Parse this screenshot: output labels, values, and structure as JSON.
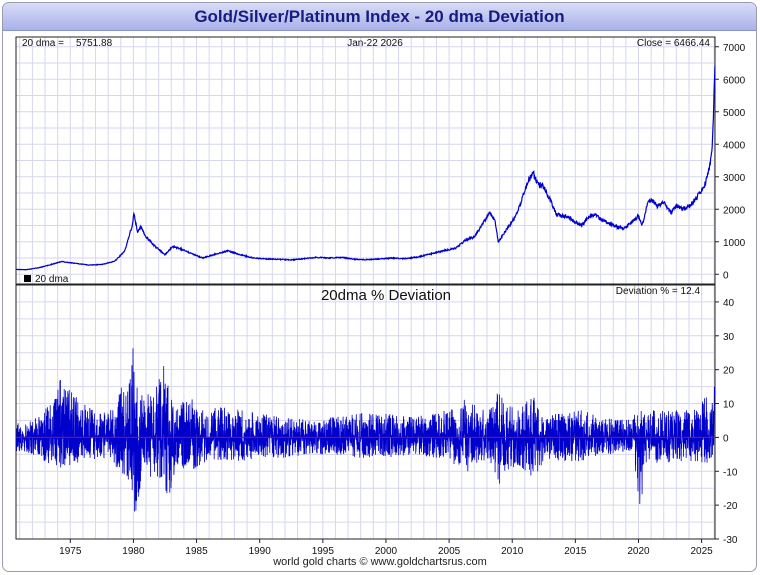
{
  "title": "Gold/Silver/Platinum Index - 20 dma Deviation",
  "footer": "world gold charts © www.goldchartsrus.com",
  "colors": {
    "series": "#0000cc",
    "zero_line": "#dd0000",
    "grid": "#d6d6ef",
    "title_text": "#1a1a80"
  },
  "top_panel": {
    "dma_label": "20 dma =",
    "dma_value": "5751.88",
    "date_label": "Jan-22  2026",
    "close_label": "Close = 6466.44",
    "legend_label": "20 dma"
  },
  "bottom_panel": {
    "heading": "20dma  %  Deviation",
    "deviation_label": "Deviation % = 12.4"
  },
  "chart_data": [
    {
      "type": "line",
      "title": "Gold/Silver/Platinum Index",
      "x_range": [
        1970.7,
        2026.06
      ],
      "ylim": [
        -300,
        7300
      ],
      "y_ticks": [
        0,
        1000,
        2000,
        3000,
        4000,
        5000,
        6000,
        7000
      ],
      "x_ticks": [
        1975,
        1980,
        1985,
        1990,
        1995,
        2000,
        2005,
        2010,
        2015,
        2020,
        2025
      ],
      "series": [
        {
          "name": "Index",
          "x": [
            1970.7,
            1971.5,
            1972.5,
            1973.5,
            1974.3,
            1975.5,
            1976.5,
            1977.5,
            1978.5,
            1979.3,
            1979.9,
            1980.05,
            1980.3,
            1980.6,
            1981.0,
            1981.6,
            1982.5,
            1983.1,
            1983.6,
            1984.5,
            1985.5,
            1986.5,
            1987.5,
            1988.5,
            1989.5,
            1990.5,
            1991.5,
            1992.5,
            1993.5,
            1994.5,
            1995.5,
            1996.5,
            1997.5,
            1998.5,
            1999.5,
            2000.5,
            2001.5,
            2002.5,
            2003.5,
            2004.5,
            2005.5,
            2006.3,
            2007.0,
            2007.6,
            2008.2,
            2008.6,
            2008.9,
            2009.5,
            2010.3,
            2010.9,
            2011.3,
            2011.7,
            2012.0,
            2012.5,
            2013.0,
            2013.5,
            2014.0,
            2014.5,
            2015.0,
            2015.5,
            2016.0,
            2016.5,
            2017.0,
            2018.0,
            2018.8,
            2019.5,
            2020.0,
            2020.3,
            2020.7,
            2021.0,
            2021.5,
            2022.0,
            2022.6,
            2023.0,
            2023.5,
            2024.0,
            2024.5,
            2025.0,
            2025.3,
            2025.5,
            2025.7,
            2025.85,
            2025.95,
            2026.06
          ],
          "values": [
            150,
            140,
            200,
            300,
            390,
            330,
            280,
            300,
            400,
            700,
            1500,
            1900,
            1300,
            1450,
            1150,
            900,
            600,
            850,
            800,
            650,
            500,
            620,
            720,
            600,
            500,
            470,
            460,
            440,
            480,
            520,
            500,
            520,
            460,
            450,
            470,
            500,
            480,
            530,
            620,
            720,
            800,
            1050,
            1150,
            1500,
            1900,
            1700,
            1000,
            1350,
            1800,
            2450,
            2900,
            3100,
            2800,
            2700,
            2300,
            1850,
            1800,
            1750,
            1600,
            1500,
            1750,
            1850,
            1700,
            1500,
            1400,
            1600,
            1800,
            1500,
            2200,
            2300,
            2100,
            2200,
            1900,
            2100,
            2000,
            2100,
            2300,
            2600,
            2800,
            3100,
            3400,
            4000,
            5200,
            6466
          ]
        }
      ]
    },
    {
      "type": "line",
      "title": "20dma  %  Deviation",
      "ylabel": "Deviation %",
      "x_range": [
        1970.7,
        2026.06
      ],
      "ylim": [
        -30,
        45
      ],
      "y_ticks": [
        -30,
        -20,
        -10,
        0,
        10,
        20,
        30,
        40
      ],
      "x_ticks": [
        1975,
        1980,
        1985,
        1990,
        1995,
        2000,
        2005,
        2010,
        2015,
        2020,
        2025
      ],
      "envelope_x": [
        1970.7,
        1972.0,
        1973.5,
        1974.5,
        1975.0,
        1976.0,
        1977.5,
        1978.5,
        1979.5,
        1979.9,
        1980.2,
        1980.7,
        1981.5,
        1982.3,
        1982.8,
        1983.5,
        1984.5,
        1985.5,
        1987.0,
        1988.5,
        1990.0,
        1992.0,
        1994.0,
        1996.0,
        1998.0,
        2000.0,
        2002.0,
        2004.0,
        2005.5,
        2006.5,
        2007.5,
        2008.4,
        2008.9,
        2009.5,
        2010.5,
        2011.7,
        2012.5,
        2014.0,
        2015.5,
        2017.0,
        2018.5,
        2019.5,
        2020.2,
        2020.5,
        2021.5,
        2023.0,
        2024.0,
        2024.8,
        2025.3,
        2025.7,
        2026.06
      ],
      "envelope_upper": [
        4,
        5,
        10,
        20,
        14,
        10,
        7,
        9,
        20,
        30,
        20,
        12,
        14,
        26,
        14,
        10,
        12,
        8,
        9,
        8,
        7,
        6,
        5,
        6,
        7,
        7,
        6,
        7,
        9,
        12,
        8,
        10,
        14,
        10,
        9,
        12,
        7,
        7,
        8,
        6,
        5,
        6,
        9,
        7,
        9,
        8,
        8,
        9,
        12,
        11,
        19
      ],
      "envelope_lower": [
        -4,
        -5,
        -8,
        -10,
        -8,
        -7,
        -6,
        -8,
        -12,
        -16,
        -25,
        -10,
        -12,
        -13,
        -18,
        -9,
        -10,
        -8,
        -7,
        -7,
        -6,
        -6,
        -5,
        -5,
        -6,
        -6,
        -5,
        -6,
        -8,
        -10,
        -7,
        -8,
        -16,
        -10,
        -8,
        -12,
        -7,
        -7,
        -7,
        -5,
        -5,
        -5,
        -22,
        -8,
        -8,
        -7,
        -7,
        -7,
        -8,
        -7,
        -5
      ],
      "last_value": 12.4
    }
  ]
}
